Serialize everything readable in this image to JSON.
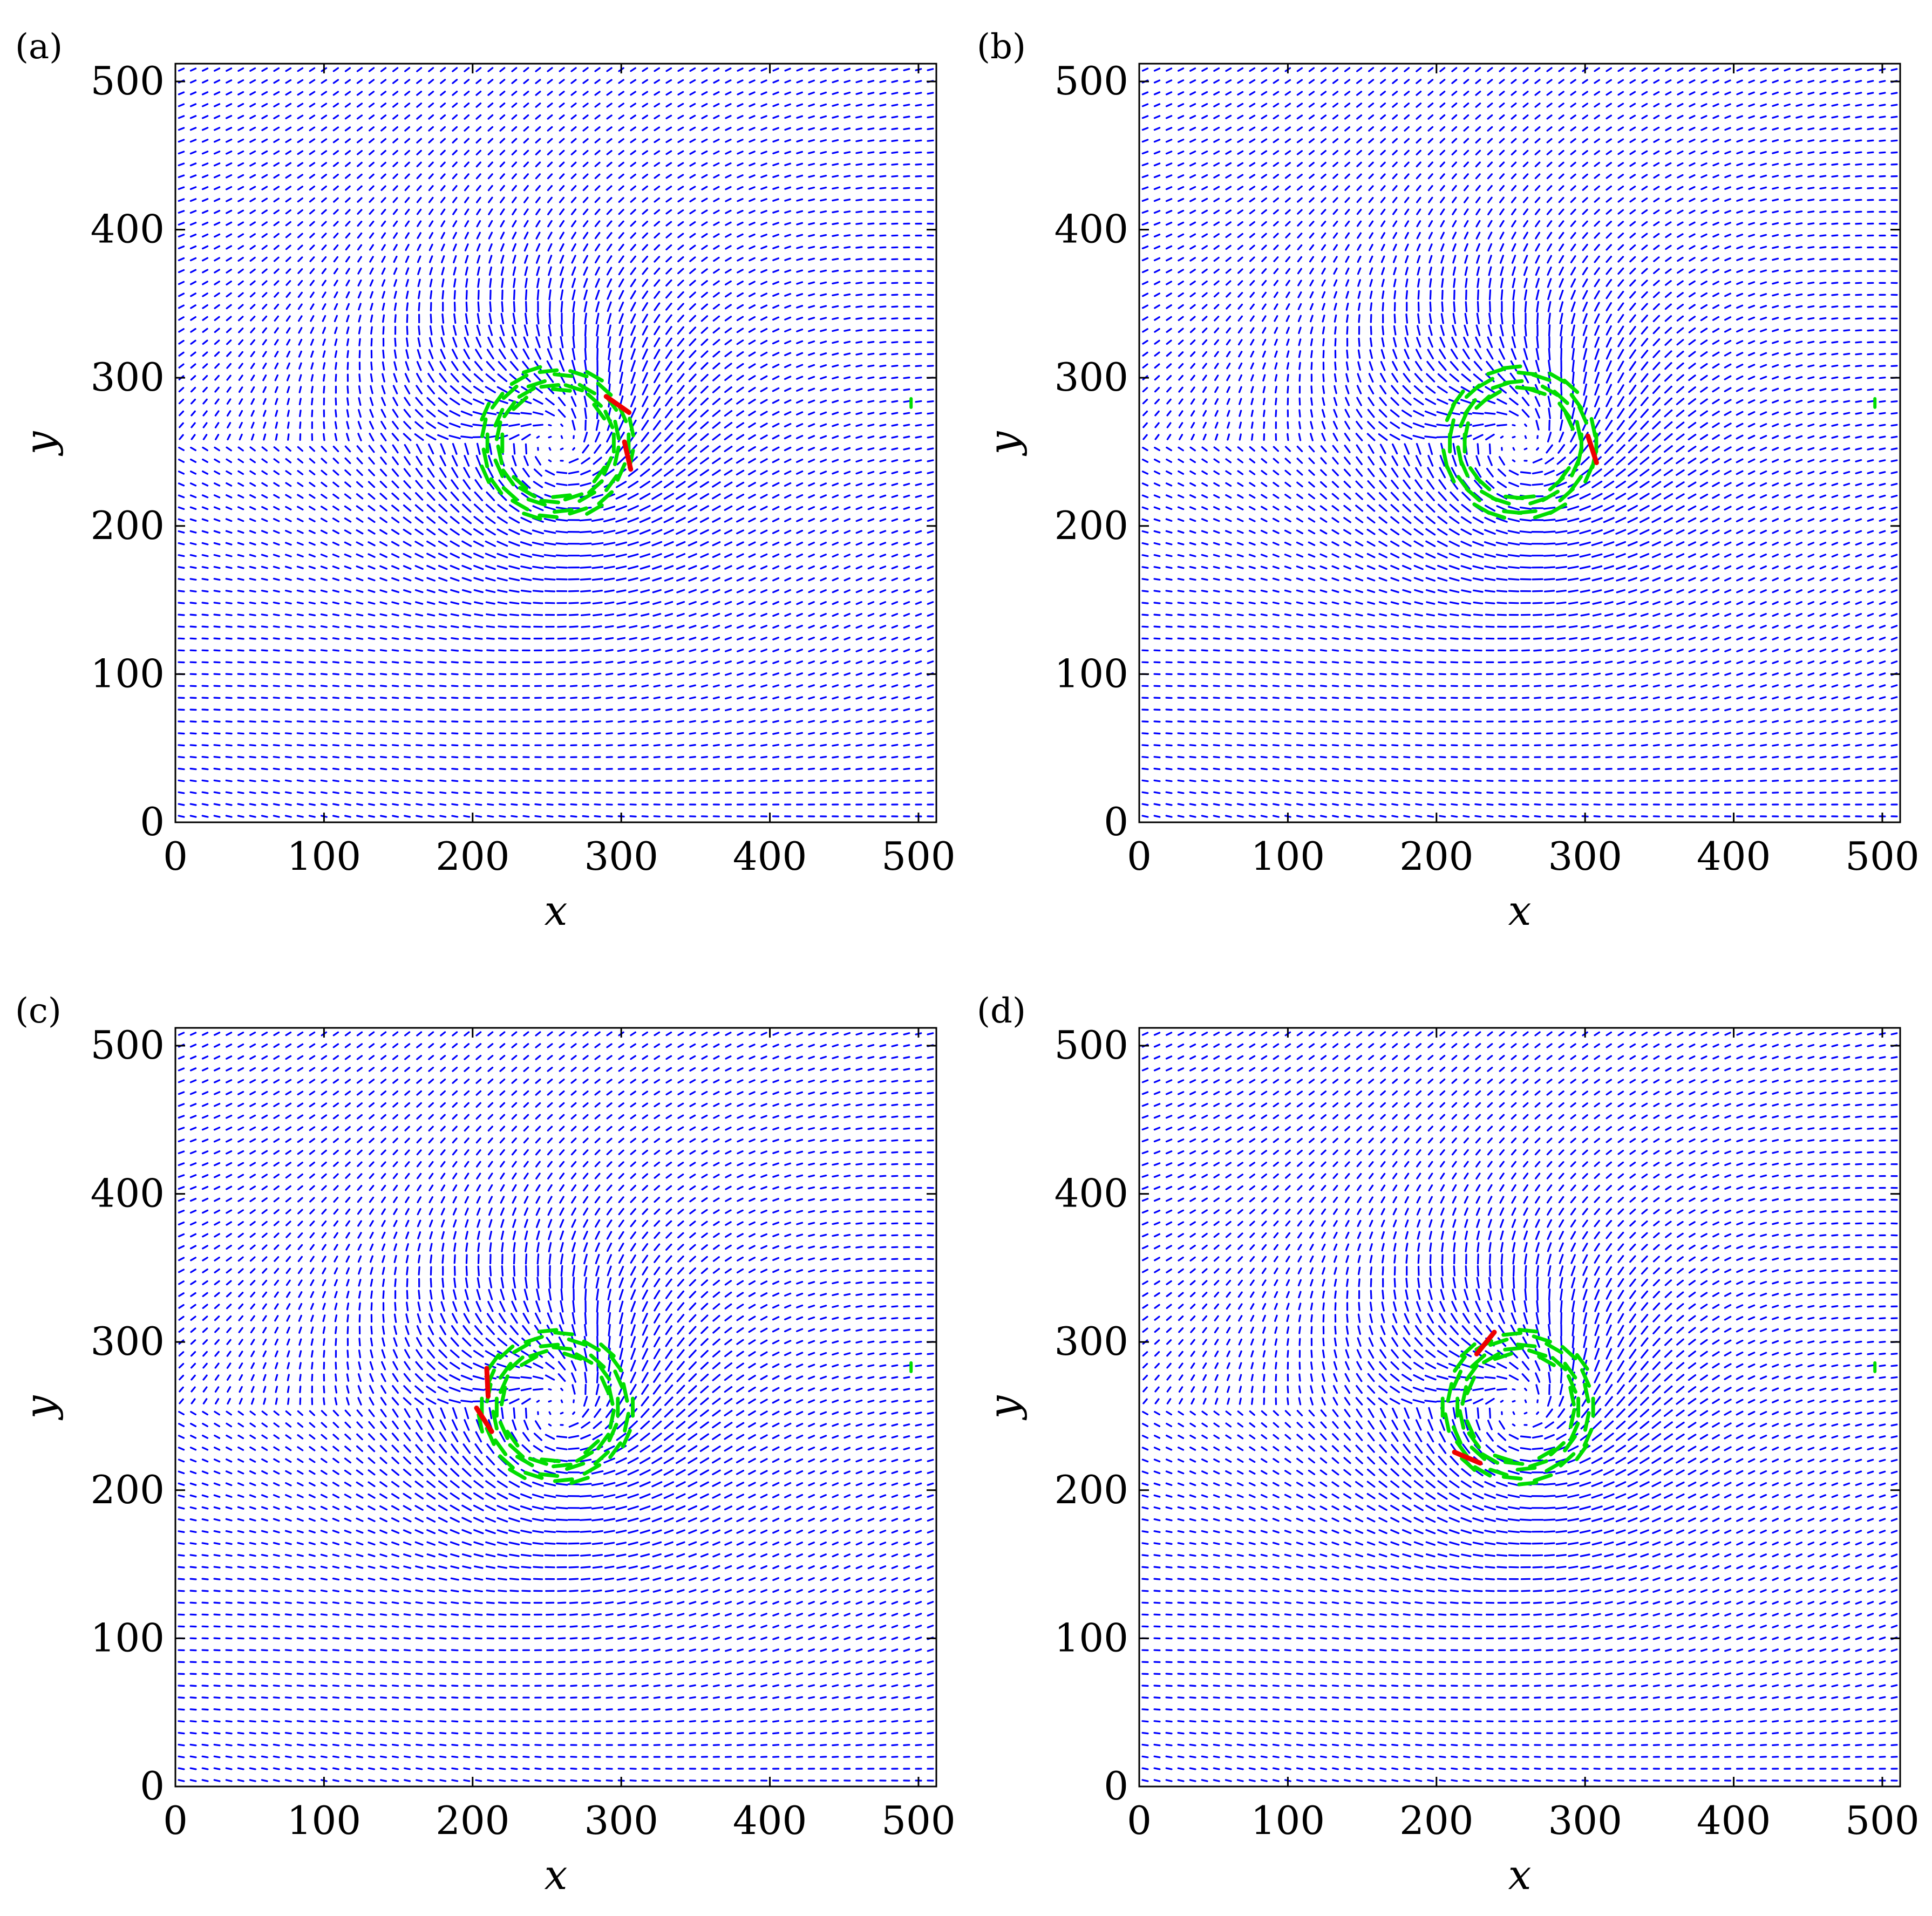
{
  "figure": {
    "panels": [
      {
        "label": "(a)",
        "red_angles_deg": [
          -10,
          32
        ]
      },
      {
        "label": "(b)",
        "red_angles_deg": [
          -5
        ]
      },
      {
        "label": "(c)",
        "red_angles_deg": [
          160,
          190
        ]
      },
      {
        "label": "(d)",
        "red_angles_deg": [
          118,
          224
        ]
      }
    ]
  },
  "colors": {
    "field": "#0000ff",
    "ring": "#00dd00",
    "defect": "#ee0000",
    "axes": "#000000"
  },
  "chart_data": [
    {
      "type": "quiver",
      "panel": "(a)",
      "xlabel": "x",
      "ylabel": "y",
      "xlim": [
        0,
        512
      ],
      "ylim": [
        0,
        512
      ],
      "xticks": [
        0,
        100,
        200,
        300,
        400,
        500
      ],
      "yticks": [
        0,
        100,
        200,
        300,
        400,
        500
      ],
      "grid": false,
      "vortex_center": [
        256,
        256
      ],
      "ring_radius": 45,
      "isolated_green_point": [
        495,
        283
      ]
    },
    {
      "type": "quiver",
      "panel": "(b)",
      "xlabel": "x",
      "ylabel": "y",
      "xlim": [
        0,
        512
      ],
      "ylim": [
        0,
        512
      ],
      "xticks": [
        0,
        100,
        200,
        300,
        400,
        500
      ],
      "yticks": [
        0,
        100,
        200,
        300,
        400,
        500
      ],
      "grid": false,
      "vortex_center": [
        256,
        256
      ],
      "ring_radius": 45,
      "isolated_green_point": [
        495,
        283
      ]
    },
    {
      "type": "quiver",
      "panel": "(c)",
      "xlabel": "x",
      "ylabel": "y",
      "xlim": [
        0,
        512
      ],
      "ylim": [
        0,
        512
      ],
      "xticks": [
        0,
        100,
        200,
        300,
        400,
        500
      ],
      "yticks": [
        0,
        100,
        200,
        300,
        400,
        500
      ],
      "grid": false,
      "vortex_center": [
        256,
        256
      ],
      "ring_radius": 45,
      "isolated_green_point": [
        495,
        283
      ]
    },
    {
      "type": "quiver",
      "panel": "(d)",
      "xlabel": "x",
      "ylabel": "y",
      "xlim": [
        0,
        512
      ],
      "ylim": [
        0,
        512
      ],
      "xticks": [
        0,
        100,
        200,
        300,
        400,
        500
      ],
      "yticks": [
        0,
        100,
        200,
        300,
        400,
        500
      ],
      "grid": false,
      "vortex_center": [
        256,
        256
      ],
      "ring_radius": 45,
      "isolated_green_point": [
        495,
        283
      ]
    }
  ]
}
